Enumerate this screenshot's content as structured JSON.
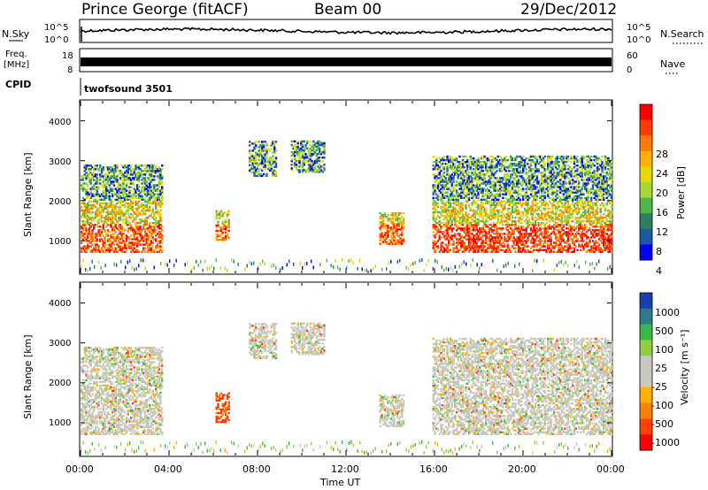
{
  "header": {
    "station": "Prince George (fitACF)",
    "beam": "Beam 00",
    "date": "29/Dec/2012"
  },
  "noise_panel": {
    "left_label": "N.Sky",
    "right_label": "N.Search",
    "left_ticks": [
      "10^5",
      "10^0"
    ],
    "right_ticks": [
      "10^5",
      "10^0"
    ]
  },
  "freq_panel": {
    "left_label_1": "Freq.",
    "left_label_2": "[MHz]",
    "right_label": "Nave",
    "left_ticks": [
      "18",
      "8"
    ],
    "right_ticks": [
      "60",
      "0"
    ]
  },
  "cpid": {
    "label": "CPID",
    "value": "twofsound 3501"
  },
  "power_panel": {
    "ylabel": "Slant Range [km]",
    "yticks": [
      "4000",
      "3000",
      "2000",
      "1000"
    ],
    "colorbar_label": "Power [dB]",
    "colorbar_ticks": [
      "28",
      "24",
      "20",
      "16",
      "12",
      "8",
      "4"
    ],
    "colorbar_colors": [
      "#ff0000",
      "#ff3a00",
      "#ff7a00",
      "#ffb000",
      "#e6d800",
      "#a8d830",
      "#4fb848",
      "#2a8060",
      "#1a58a8",
      "#0000ff"
    ]
  },
  "velocity_panel": {
    "ylabel": "Slant Range [km]",
    "yticks": [
      "4000",
      "3000",
      "2000",
      "1000"
    ],
    "colorbar_label": "Velocity [m s⁻¹]",
    "colorbar_ticks": [
      "1000",
      "500",
      "100",
      "25",
      "-25",
      "-100",
      "-500",
      "-1000"
    ],
    "colorbar_colors": [
      "#1a40b0",
      "#2e7a8a",
      "#3ab848",
      "#90d040",
      "#c8c8c0",
      "#c8c8c0",
      "#ffb000",
      "#ff8000",
      "#ff4000",
      "#ff0000"
    ]
  },
  "xaxis": {
    "ticks": [
      "00:00",
      "04:00",
      "08:00",
      "12:00",
      "16:00",
      "20:00",
      "00:00"
    ],
    "label": "Time UT"
  },
  "chart_data": {
    "type": "heatmap",
    "x_range": [
      "00:00",
      "24:00"
    ],
    "y_range_km": [
      180,
      4500
    ],
    "echo_regions": [
      {
        "t0": 0.0,
        "t1": 3.7,
        "r0": 700,
        "r1": 2900
      },
      {
        "t0": 6.1,
        "t1": 6.7,
        "r0": 1000,
        "r1": 1750
      },
      {
        "t0": 7.6,
        "t1": 8.8,
        "r0": 2600,
        "r1": 3500
      },
      {
        "t0": 9.5,
        "t1": 11.0,
        "r0": 2700,
        "r1": 3500
      },
      {
        "t0": 13.5,
        "t1": 14.6,
        "r0": 900,
        "r1": 1700
      },
      {
        "t0": 15.9,
        "t1": 24.0,
        "r0": 700,
        "r1": 3100
      }
    ]
  }
}
